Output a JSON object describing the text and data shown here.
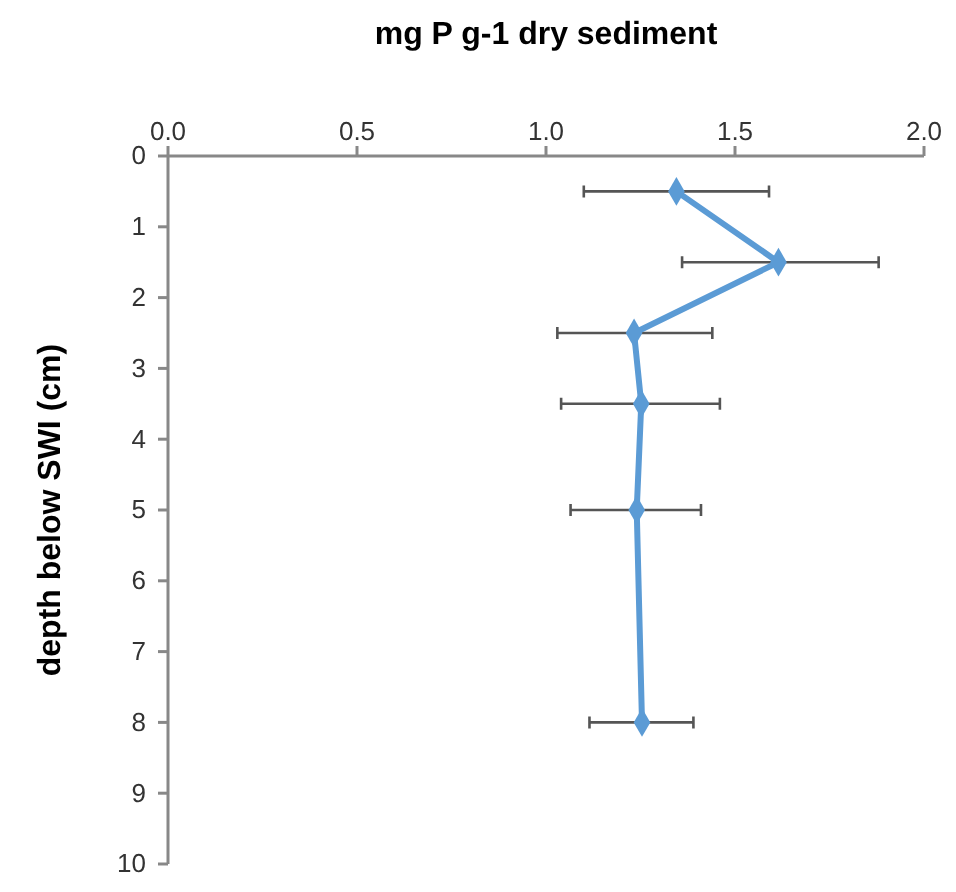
{
  "chart_data": {
    "type": "line",
    "xlabel": "mg P g-1 dry sediment",
    "ylabel": "depth below SWI (cm)",
    "x": [
      1.345,
      1.615,
      1.233,
      1.252,
      1.24,
      1.254
    ],
    "values": [
      0.5,
      1.5,
      2.5,
      3.5,
      5,
      8
    ],
    "xerrors": [
      [
        1.1,
        1.59
      ],
      [
        1.36,
        1.88
      ],
      [
        1.03,
        1.44
      ],
      [
        1.04,
        1.46
      ],
      [
        1.065,
        1.41
      ],
      [
        1.115,
        1.39
      ]
    ],
    "color": "#5b9bd5",
    "marker": "diamond",
    "line_style": "solid",
    "xlim": [
      0,
      2
    ],
    "xticks": [
      {
        "value": 0,
        "label": "0.0"
      },
      {
        "value": 0.5,
        "label": "0.5"
      },
      {
        "value": 1,
        "label": "1.0"
      },
      {
        "value": 1.5,
        "label": "1.5"
      },
      {
        "value": 2,
        "label": "2.0"
      }
    ],
    "ylim": [
      10,
      0
    ],
    "yticks": [
      0,
      1,
      2,
      3,
      4,
      5,
      6,
      7,
      8,
      9,
      10
    ]
  }
}
